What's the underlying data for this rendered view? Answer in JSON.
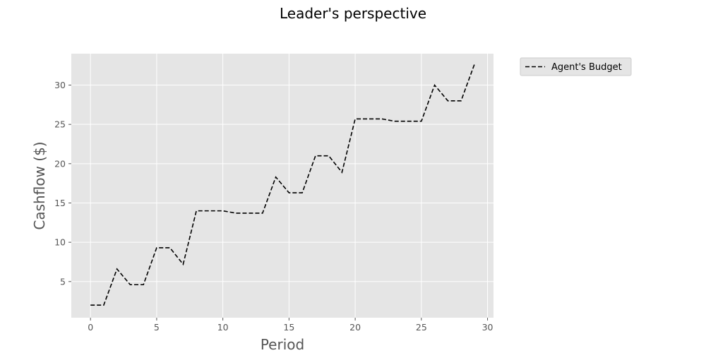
{
  "chart_data": {
    "type": "line",
    "title": "Leader's perspective",
    "xlabel": "Period",
    "ylabel": "Cashflow ($)",
    "xlim": [
      -1.45,
      30.45
    ],
    "ylim": [
      0.4,
      34.0
    ],
    "xticks": [
      0,
      5,
      10,
      15,
      20,
      25,
      30
    ],
    "yticks": [
      5,
      10,
      15,
      20,
      25,
      30
    ],
    "grid": true,
    "legend_position": "outside-top-right",
    "colors": {
      "background": "#e5e5e5",
      "grid": "#ffffff",
      "line": "#000000",
      "tick_text": "#555555"
    },
    "x": [
      0,
      1,
      2,
      3,
      4,
      5,
      6,
      7,
      8,
      9,
      10,
      11,
      12,
      13,
      14,
      15,
      16,
      17,
      18,
      19,
      20,
      21,
      22,
      23,
      24,
      25,
      26,
      27,
      28,
      29
    ],
    "series": [
      {
        "name": "Agent's Budget",
        "line_style": "dashed",
        "values": [
          2.0,
          2.0,
          6.6,
          4.6,
          4.6,
          9.3,
          9.3,
          7.2,
          14.0,
          14.0,
          14.0,
          13.7,
          13.7,
          13.7,
          18.3,
          16.3,
          16.3,
          21.0,
          21.0,
          18.9,
          25.7,
          25.7,
          25.7,
          25.4,
          25.4,
          25.4,
          30.0,
          28.0,
          28.0,
          32.6
        ]
      }
    ]
  }
}
